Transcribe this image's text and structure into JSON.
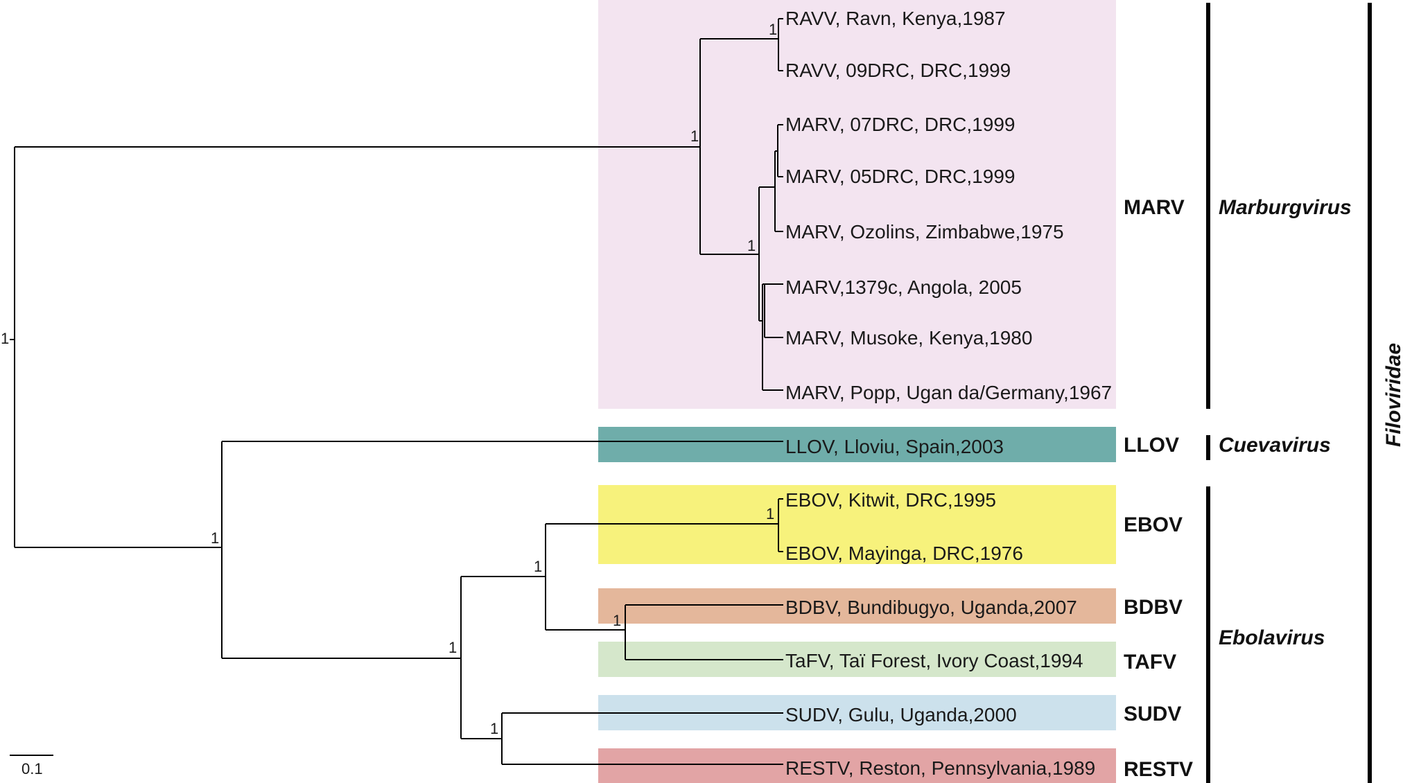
{
  "colors": {
    "marv": "#f3e4f0",
    "llov": "#6fadaa",
    "ebov": "#f7f27c",
    "bdbv": "#e4b79b",
    "tafv": "#d5e7cb",
    "sudv": "#cce1ec",
    "restv": "#e2a4a5",
    "line": "#000000"
  },
  "leaves": [
    {
      "id": "ravv_ravn",
      "label": "RAVV, Ravn, Kenya,1987"
    },
    {
      "id": "ravv_09drc",
      "label": "RAVV, 09DRC, DRC,1999"
    },
    {
      "id": "marv_07drc",
      "label": "MARV, 07DRC, DRC,1999"
    },
    {
      "id": "marv_05drc",
      "label": "MARV, 05DRC, DRC,1999"
    },
    {
      "id": "marv_ozolins",
      "label": "MARV, Ozolins, Zimbabwe,1975"
    },
    {
      "id": "marv_1379c",
      "label": "MARV,1379c, Angola, 2005"
    },
    {
      "id": "marv_musoke",
      "label": "MARV, Musoke, Kenya,1980"
    },
    {
      "id": "marv_popp",
      "label": "MARV, Popp, Ugan da/Germany,1967"
    },
    {
      "id": "llov_lloviu",
      "label": "LLOV, Lloviu, Spain,2003"
    },
    {
      "id": "ebov_kitwit",
      "label": "EBOV, Kitwit, DRC,1995"
    },
    {
      "id": "ebov_mayinga",
      "label": "EBOV, Mayinga, DRC,1976"
    },
    {
      "id": "bdbv_bundibugyo",
      "label": "BDBV, Bundibugyo, Uganda,2007"
    },
    {
      "id": "tafv_tai",
      "label": "TaFV, Taï Forest, Ivory Coast,1994"
    },
    {
      "id": "sudv_gulu",
      "label": "SUDV, Gulu, Uganda,2000"
    },
    {
      "id": "restv_reston",
      "label": "RESTV, Reston, Pennsylvania,1989"
    }
  ],
  "support_values": [
    {
      "id": "root",
      "label": "1"
    },
    {
      "id": "marv_clade",
      "label": "1"
    },
    {
      "id": "ravv_clade",
      "label": "1"
    },
    {
      "id": "marv_strains",
      "label": "1"
    },
    {
      "id": "llov_ebola",
      "label": "1"
    },
    {
      "id": "ebolavirus",
      "label": "1"
    },
    {
      "id": "ebov_bdbv_tafv",
      "label": "1"
    },
    {
      "id": "ebov_clade",
      "label": "1"
    },
    {
      "id": "bdbv_tafv",
      "label": "1"
    },
    {
      "id": "sudv_restv",
      "label": "1"
    }
  ],
  "species_labels": [
    {
      "id": "marv",
      "label": "MARV"
    },
    {
      "id": "llov",
      "label": "LLOV"
    },
    {
      "id": "ebov",
      "label": "EBOV"
    },
    {
      "id": "bdbv",
      "label": "BDBV"
    },
    {
      "id": "tafv",
      "label": "TAFV"
    },
    {
      "id": "sudv",
      "label": "SUDV"
    },
    {
      "id": "restv",
      "label": "RESTV"
    }
  ],
  "genera": [
    {
      "id": "marburgvirus",
      "label": "Marburgvirus"
    },
    {
      "id": "cuevavirus",
      "label": "Cuevavirus"
    },
    {
      "id": "ebolavirus",
      "label": "Ebolavirus"
    }
  ],
  "family": "Filoviridae",
  "scale_bar": "0.1"
}
